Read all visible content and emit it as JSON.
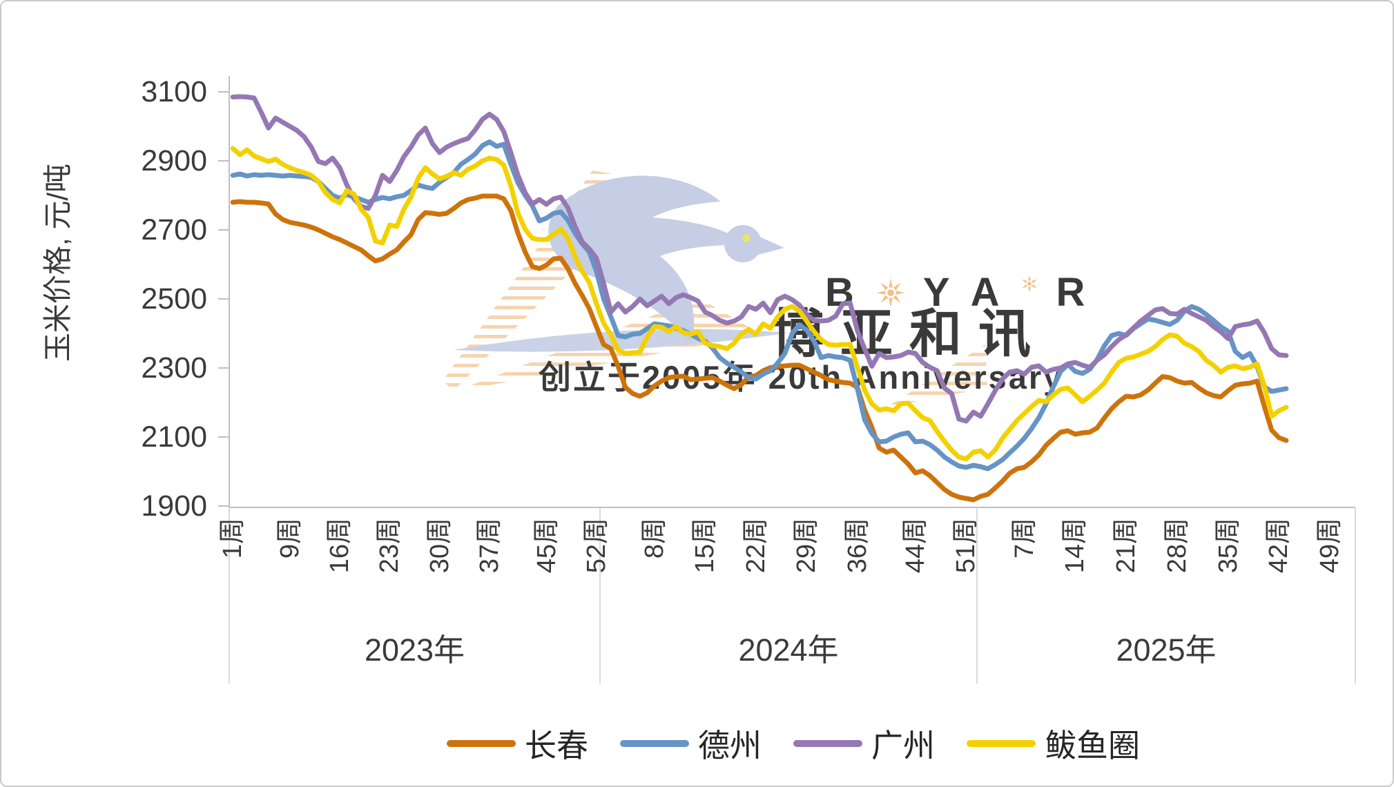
{
  "watermark": {
    "brand_letters": {
      "l1": "B",
      "l2": "Y",
      "l3": "A",
      "l4": "R"
    },
    "brand_cn": "博亚和讯",
    "tagline": "创立于2005年 20th Anniversary",
    "colors": {
      "bird": "#c5cee4",
      "bird_eye": "#e9e372",
      "swoosh": "#c9d2e6",
      "brand_text": "#f2c18b",
      "cn_text": "#cad4e9",
      "tagline_text": "#f8dcb6"
    }
  },
  "legend": {
    "items": [
      {
        "label": "长春",
        "color": "#ce730b"
      },
      {
        "label": "德州",
        "color": "#6594c6"
      },
      {
        "label": "广州",
        "color": "#9478b3"
      },
      {
        "label": "鲅鱼圈",
        "color": "#f3d101"
      }
    ]
  },
  "chart_data": {
    "type": "line",
    "title": "",
    "ylabel": "玉米价格, 元/吨",
    "ylim": [
      1900,
      3100
    ],
    "yticks": [
      1900,
      2100,
      2300,
      2500,
      2700,
      2900,
      3100
    ],
    "grid": false,
    "legend_position": "bottom",
    "axis_color": "#bfbfbf",
    "separator_color": "#d9d9d9",
    "x_axis": {
      "years": [
        {
          "label": "2023年",
          "weeks_total": 52,
          "tick_week_numbers": [
            1,
            9,
            16,
            23,
            30,
            37,
            45,
            52
          ],
          "week_ticks": [
            "1周",
            "9周",
            "16周",
            "23周",
            "30周",
            "37周",
            "45周",
            "52周"
          ]
        },
        {
          "label": "2024年",
          "weeks_total": 52,
          "tick_week_numbers": [
            8,
            15,
            22,
            29,
            36,
            44,
            51
          ],
          "week_ticks": [
            "8周",
            "15周",
            "22周",
            "29周",
            "36周",
            "44周",
            "51周"
          ]
        },
        {
          "label": "2025年",
          "weeks_total": 52,
          "tick_week_numbers": [
            7,
            14,
            21,
            28,
            35,
            42,
            49
          ],
          "week_ticks": [
            "7周",
            "14周",
            "21周",
            "28周",
            "35周",
            "42周",
            "49周"
          ]
        }
      ]
    },
    "series": [
      {
        "name": "长春",
        "color": "#ce730b",
        "values_2023": [
          2780,
          2782,
          2780,
          2780,
          2778,
          2775,
          2746,
          2730,
          2722,
          2718,
          2714,
          2708,
          2700,
          2690,
          2680,
          2672,
          2662,
          2652,
          2642,
          2625,
          2610,
          2616,
          2630,
          2642,
          2665,
          2686,
          2730,
          2750,
          2748,
          2745,
          2748,
          2762,
          2778,
          2788,
          2792,
          2798,
          2798,
          2798,
          2790,
          2756,
          2690,
          2636,
          2594,
          2588,
          2598,
          2616,
          2618,
          2588,
          2545,
          2510,
          2472,
          2420
        ],
        "values_2024": [
          2368,
          2356,
          2304,
          2244,
          2226,
          2218,
          2228,
          2248,
          2262,
          2272,
          2275,
          2276,
          2266,
          2268,
          2270,
          2272,
          2262,
          2250,
          2240,
          2252,
          2274,
          2278,
          2292,
          2301,
          2304,
          2306,
          2308,
          2308,
          2298,
          2288,
          2278,
          2266,
          2262,
          2258,
          2256,
          2244,
          2178,
          2128,
          2068,
          2056,
          2062,
          2042,
          2022,
          1996,
          2002,
          1988,
          1968,
          1948,
          1934,
          1926,
          1922,
          1918
        ],
        "values_2025": [
          1928,
          1934,
          1952,
          1972,
          1995,
          2008,
          2012,
          2028,
          2048,
          2076,
          2096,
          2114,
          2118,
          2108,
          2112,
          2114,
          2126,
          2155,
          2182,
          2202,
          2218,
          2216,
          2222,
          2236,
          2256,
          2275,
          2272,
          2262,
          2256,
          2258,
          2242,
          2228,
          2220,
          2216,
          2234,
          2250,
          2254,
          2256,
          2262,
          2188,
          2120,
          2098,
          2090
        ]
      },
      {
        "name": "德州",
        "color": "#6594c6",
        "values_2023": [
          2858,
          2862,
          2856,
          2860,
          2858,
          2860,
          2858,
          2856,
          2858,
          2856,
          2855,
          2852,
          2840,
          2820,
          2800,
          2792,
          2802,
          2795,
          2788,
          2780,
          2788,
          2794,
          2790,
          2796,
          2800,
          2814,
          2830,
          2824,
          2820,
          2838,
          2852,
          2866,
          2890,
          2904,
          2920,
          2944,
          2955,
          2942,
          2948,
          2890,
          2836,
          2800,
          2770,
          2726,
          2734,
          2748,
          2752,
          2728,
          2690,
          2660,
          2636,
          2580
        ],
        "values_2024": [
          2500,
          2448,
          2394,
          2390,
          2398,
          2400,
          2414,
          2428,
          2425,
          2422,
          2415,
          2408,
          2398,
          2386,
          2378,
          2358,
          2330,
          2314,
          2302,
          2288,
          2272,
          2268,
          2282,
          2292,
          2314,
          2342,
          2400,
          2425,
          2410,
          2378,
          2330,
          2336,
          2332,
          2330,
          2322,
          2240,
          2150,
          2110,
          2086,
          2088,
          2100,
          2108,
          2112,
          2086,
          2088,
          2078,
          2062,
          2042,
          2028,
          2016,
          2012,
          2018
        ],
        "values_2025": [
          2014,
          2008,
          2020,
          2034,
          2054,
          2074,
          2096,
          2124,
          2156,
          2196,
          2246,
          2290,
          2310,
          2290,
          2284,
          2296,
          2324,
          2364,
          2394,
          2400,
          2394,
          2414,
          2428,
          2442,
          2438,
          2432,
          2426,
          2438,
          2464,
          2478,
          2470,
          2455,
          2438,
          2420,
          2406,
          2348,
          2330,
          2342,
          2304,
          2245,
          2232,
          2236,
          2240
        ]
      },
      {
        "name": "广州",
        "color": "#9478b3",
        "values_2023": [
          3085,
          3086,
          3085,
          3082,
          3040,
          2995,
          3024,
          3012,
          3000,
          2988,
          2970,
          2940,
          2898,
          2892,
          2908,
          2880,
          2830,
          2790,
          2768,
          2762,
          2800,
          2858,
          2840,
          2872,
          2912,
          2940,
          2975,
          2995,
          2950,
          2924,
          2940,
          2950,
          2958,
          2965,
          2990,
          3020,
          3035,
          3020,
          2985,
          2924,
          2858,
          2808,
          2775,
          2788,
          2774,
          2790,
          2795,
          2764,
          2710,
          2665,
          2645,
          2618
        ],
        "values_2024": [
          2545,
          2462,
          2486,
          2462,
          2478,
          2500,
          2480,
          2494,
          2508,
          2486,
          2504,
          2512,
          2504,
          2494,
          2462,
          2452,
          2438,
          2430,
          2436,
          2448,
          2478,
          2470,
          2488,
          2460,
          2498,
          2508,
          2498,
          2482,
          2455,
          2438,
          2436,
          2438,
          2450,
          2486,
          2488,
          2408,
          2355,
          2305,
          2342,
          2330,
          2332,
          2336,
          2346,
          2342,
          2316,
          2302,
          2292,
          2242,
          2226,
          2152,
          2146,
          2172
        ],
        "values_2025": [
          2160,
          2196,
          2234,
          2268,
          2288,
          2292,
          2282,
          2302,
          2306,
          2288,
          2296,
          2300,
          2312,
          2316,
          2308,
          2302,
          2322,
          2338,
          2362,
          2382,
          2396,
          2416,
          2436,
          2452,
          2468,
          2472,
          2458,
          2456,
          2470,
          2458,
          2448,
          2438,
          2420,
          2405,
          2385,
          2420,
          2425,
          2428,
          2436,
          2402,
          2356,
          2338,
          2336
        ]
      },
      {
        "name": "鲅鱼圈",
        "color": "#f3d101",
        "values_2023": [
          2936,
          2918,
          2932,
          2914,
          2906,
          2898,
          2905,
          2890,
          2880,
          2872,
          2866,
          2858,
          2840,
          2808,
          2788,
          2778,
          2814,
          2804,
          2760,
          2736,
          2668,
          2662,
          2714,
          2710,
          2760,
          2795,
          2850,
          2880,
          2862,
          2848,
          2855,
          2866,
          2858,
          2876,
          2885,
          2900,
          2908,
          2904,
          2888,
          2828,
          2748,
          2702,
          2676,
          2672,
          2672,
          2688,
          2702,
          2676,
          2622,
          2580,
          2548,
          2486
        ],
        "values_2024": [
          2430,
          2395,
          2352,
          2342,
          2344,
          2346,
          2390,
          2420,
          2418,
          2405,
          2420,
          2402,
          2398,
          2405,
          2372,
          2365,
          2362,
          2356,
          2372,
          2398,
          2412,
          2398,
          2428,
          2415,
          2448,
          2470,
          2478,
          2465,
          2436,
          2406,
          2382,
          2368,
          2366,
          2368,
          2368,
          2302,
          2236,
          2196,
          2178,
          2182,
          2176,
          2196,
          2198,
          2176,
          2156,
          2148,
          2116,
          2088,
          2062,
          2042,
          2036,
          2056
        ],
        "values_2025": [
          2060,
          2042,
          2062,
          2096,
          2122,
          2148,
          2168,
          2188,
          2206,
          2202,
          2222,
          2238,
          2242,
          2222,
          2202,
          2218,
          2236,
          2256,
          2288,
          2316,
          2328,
          2332,
          2340,
          2348,
          2362,
          2382,
          2396,
          2392,
          2372,
          2362,
          2348,
          2322,
          2308,
          2288,
          2302,
          2306,
          2298,
          2302,
          2312,
          2248,
          2160,
          2176,
          2186
        ]
      }
    ]
  }
}
